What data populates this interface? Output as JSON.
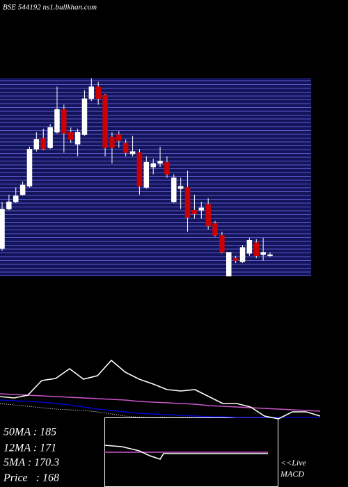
{
  "header": {
    "title": "BSE 544192 ns1.bullkhan.com"
  },
  "chart_data": [
    {
      "type": "candlestick",
      "ylim": [
        150,
        315.3
      ],
      "up_color": "#ffffff",
      "down_color": "#cc0000",
      "open": [
        173,
        206,
        212,
        218,
        225,
        256,
        265,
        257,
        270,
        289,
        270,
        260,
        268,
        298,
        308,
        301,
        266,
        268,
        261,
        252,
        253,
        224,
        241,
        244,
        245,
        212,
        223,
        224,
        205,
        205,
        210,
        194,
        184,
        150,
        165,
        162,
        169,
        178,
        168,
        167
      ],
      "high": [
        212,
        218,
        224,
        229,
        258,
        270,
        273,
        277,
        308,
        293,
        274,
        273,
        305,
        315,
        312,
        302,
        270,
        271,
        264,
        267,
        256,
        250,
        248,
        258,
        250,
        235,
        232,
        238,
        218,
        212,
        215,
        196,
        187,
        170,
        167,
        176,
        182,
        181,
        182,
        170
      ],
      "low": [
        171,
        205,
        211,
        217,
        224,
        254,
        255,
        256,
        269,
        253,
        261,
        250,
        267,
        296,
        293,
        250,
        244,
        257,
        250,
        250,
        218,
        223,
        235,
        241,
        232,
        211,
        206,
        187,
        198,
        198,
        189,
        183,
        169,
        150,
        161,
        161,
        167,
        165,
        163,
        166
      ],
      "close": [
        206,
        212,
        217,
        226,
        256,
        264,
        256,
        274,
        289,
        269,
        264,
        270,
        298,
        308,
        298,
        257,
        257,
        263,
        253,
        254,
        225,
        245,
        244,
        246,
        235,
        232,
        225,
        199,
        202,
        207,
        192,
        184,
        170,
        170,
        163,
        174,
        180,
        167,
        170,
        168
      ]
    },
    {
      "type": "line",
      "xlim": [
        0,
        500
      ],
      "ylim": [
        0,
        100
      ],
      "x": [
        0,
        20,
        40,
        60,
        80,
        100,
        120,
        140,
        160,
        180,
        200,
        220,
        240,
        260,
        280,
        300,
        320,
        340,
        360,
        380,
        400,
        420,
        440,
        460
      ],
      "series": [
        {
          "color": "#ffffff",
          "style": "dotted",
          "values": [
            30,
            28,
            26,
            24,
            22,
            21,
            20,
            18,
            15,
            12,
            10,
            10,
            10,
            10,
            10,
            10,
            10,
            10,
            10,
            10,
            10,
            10,
            10,
            10
          ]
        },
        {
          "color": "#0000cc",
          "style": "solid",
          "values": [
            35,
            34,
            33,
            32,
            30,
            28,
            25,
            22,
            20,
            18,
            16,
            15,
            14,
            13,
            12,
            11,
            11,
            10,
            10,
            10,
            10,
            10,
            10,
            10
          ]
        },
        {
          "color": "#cc55cc",
          "style": "solid",
          "values": [
            44,
            43,
            42,
            41,
            40,
            39,
            38,
            37,
            36,
            35,
            33,
            32,
            31,
            30,
            29,
            27,
            26,
            25,
            24,
            23,
            22,
            21,
            20,
            19
          ]
        },
        {
          "color": "#ffffff",
          "style": "solid",
          "values": [
            40,
            38,
            42,
            63,
            66,
            80,
            65,
            70,
            92,
            75,
            65,
            58,
            50,
            48,
            50,
            40,
            30,
            30,
            25,
            12,
            8,
            18,
            18,
            12
          ]
        }
      ]
    },
    {
      "type": "line",
      "title": "MACD",
      "xlim": [
        0,
        250
      ],
      "ylim": [
        0,
        100
      ],
      "x": [
        0,
        25,
        50,
        65,
        80,
        85,
        150,
        235
      ],
      "series": [
        {
          "color": "#cc55cc",
          "style": "solid",
          "values": [
            50,
            50,
            50,
            50,
            50,
            50,
            50,
            50
          ]
        },
        {
          "color": "#ffffff",
          "style": "solid",
          "values": [
            60,
            58,
            52,
            45,
            40,
            48,
            48,
            48
          ]
        }
      ]
    }
  ],
  "indicators": [
    "50MA : 185",
    "12MA : 171",
    "5MA : 170.3",
    "Price   : 168"
  ],
  "live_label": "<<Live"
}
